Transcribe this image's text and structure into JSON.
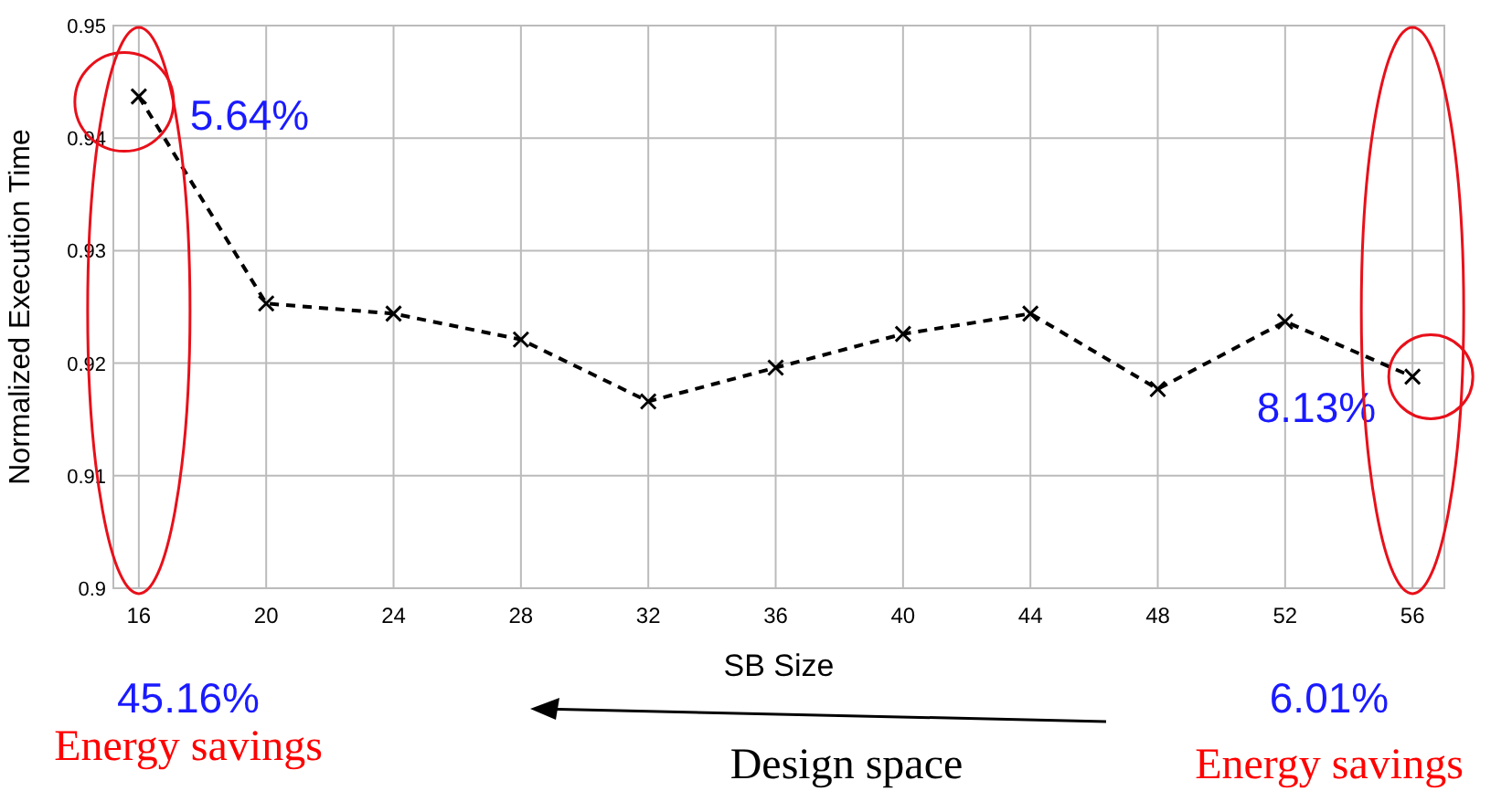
{
  "chart_data": {
    "type": "line",
    "xlabel": "SB Size",
    "ylabel": "Normalized Execution Time",
    "x": [
      16,
      20,
      24,
      28,
      32,
      36,
      40,
      44,
      48,
      52,
      56
    ],
    "series": [
      {
        "color": "#000000",
        "values": [
          0.9437,
          0.9253,
          0.9244,
          0.9221,
          0.9166,
          0.9196,
          0.9226,
          0.9244,
          0.9177,
          0.9237,
          0.9188
        ]
      }
    ],
    "xlim": [
      15.2,
      57
    ],
    "xticks": [
      16,
      20,
      24,
      28,
      32,
      36,
      40,
      44,
      48,
      52,
      56
    ],
    "ylim": [
      0.9,
      0.95
    ],
    "yticks": [
      0.9,
      0.91,
      0.92,
      0.93,
      0.94,
      0.95
    ],
    "grid": true,
    "marker": "cross",
    "line_style": "dashed",
    "annotations": [
      {
        "text": "5.64%",
        "x": 16,
        "y": 0.9437
      },
      {
        "text": "8.13%",
        "x": 56,
        "y": 0.9188
      },
      "45.16%",
      "Energy savings",
      "Design space",
      "6.01%",
      "Energy savings"
    ]
  }
}
